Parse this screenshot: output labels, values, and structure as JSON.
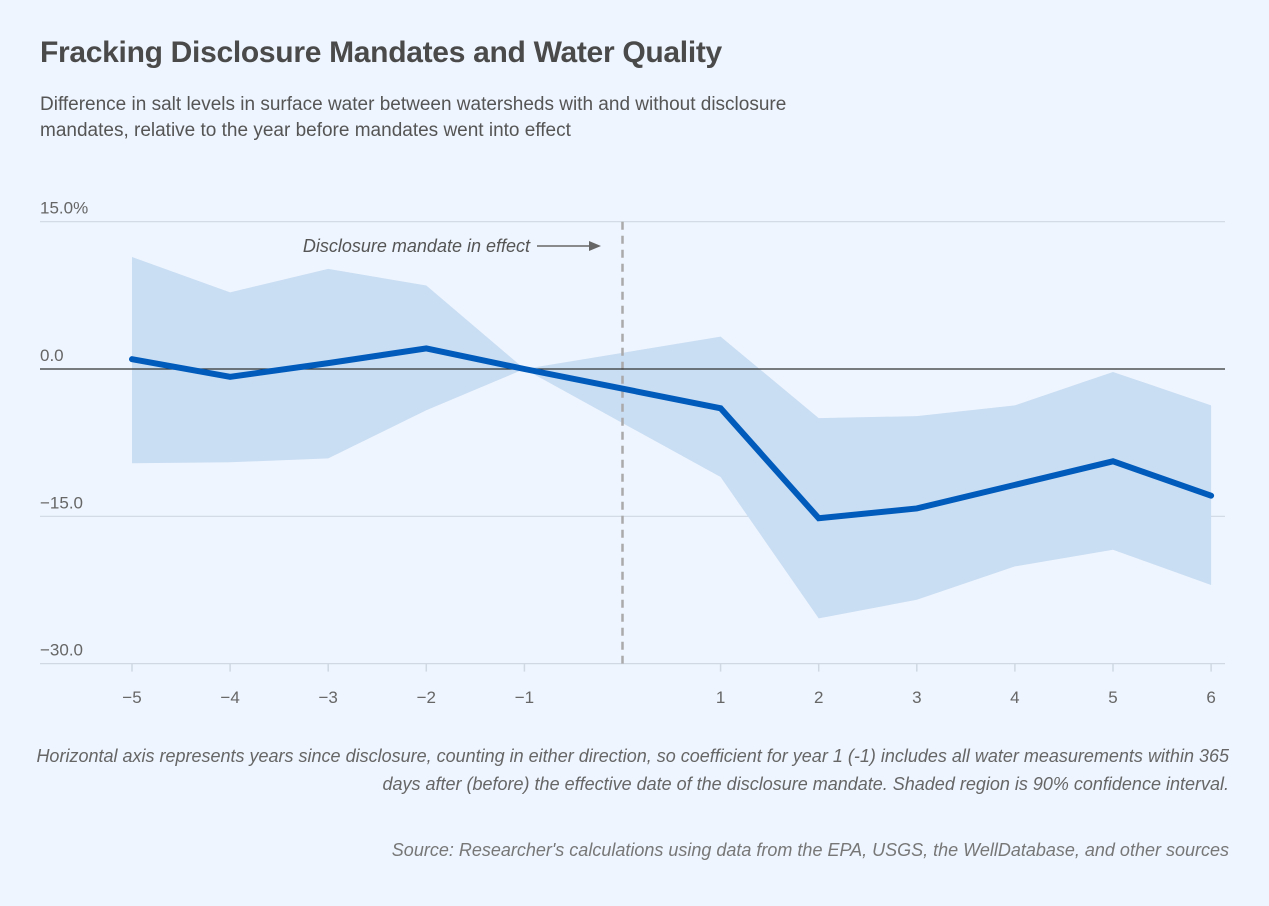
{
  "chart_data": {
    "type": "line",
    "title": "Fracking Disclosure Mandates and Water Quality",
    "subtitle": "Difference in salt levels in surface water between watersheds with and without disclosure mandates, relative to the year before mandates went into effect",
    "x": [
      -5,
      -4,
      -3,
      -2,
      -1,
      1,
      2,
      3,
      4,
      5,
      6
    ],
    "series": [
      {
        "values": [
          1.0,
          -0.8,
          0.6,
          2.1,
          0.0,
          -4.0,
          -15.2,
          -14.2,
          -11.8,
          -9.4,
          -12.9
        ]
      }
    ],
    "confidence_band": {
      "upper": [
        11.4,
        7.8,
        10.2,
        8.5,
        0.0,
        3.3,
        -5.0,
        -4.8,
        -3.7,
        -0.3,
        -3.7
      ],
      "lower": [
        -9.6,
        -9.5,
        -9.1,
        -4.2,
        0.0,
        -11.0,
        -25.4,
        -23.5,
        -20.1,
        -18.4,
        -22.0
      ]
    },
    "xlim": [
      -5,
      6
    ],
    "ylim": [
      -30,
      15
    ],
    "yticks": [
      15,
      0,
      -15,
      -30
    ],
    "ytick_labels": [
      "15.0%",
      "0.0",
      "−15.0",
      "−30.0"
    ],
    "xtick_labels": [
      "−5",
      "−4",
      "−3",
      "−2",
      "−1",
      "1",
      "2",
      "3",
      "4",
      "5",
      "6"
    ],
    "reference_line_x": 0,
    "annotation": "Disclosure mandate in effect",
    "grid": "horizontal",
    "colors": {
      "line": "#005bbb",
      "band": "#c9ddf3",
      "background": "#eef5fe",
      "zero_line": "#333333",
      "grid": "#cfd8e3",
      "reference": "#aaaaaa"
    },
    "note": "Horizontal axis represents years since disclosure, counting in either direction, so coefficient for year 1 (-1) includes all water measurements within 365 days after (before) the effective date of the disclosure mandate. Shaded region is 90% confidence interval.",
    "source": "Source: Researcher's calculations using data from the EPA, USGS, the WellDatabase, and other sources"
  }
}
